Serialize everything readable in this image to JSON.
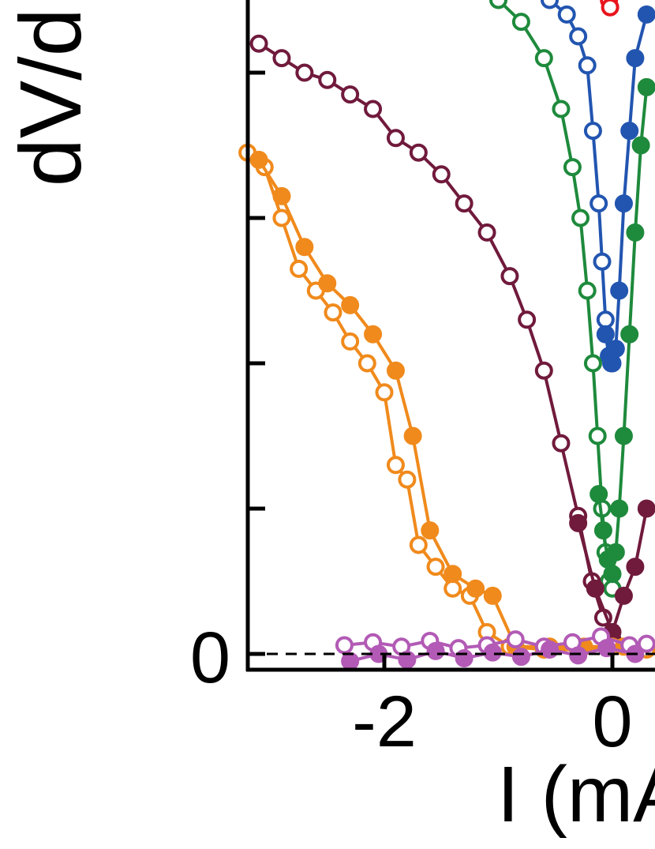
{
  "chart_data": {
    "type": "scatter",
    "title": "",
    "xlabel": "I (mA)",
    "ylabel": "dV/dI",
    "xlim": [
      -3.3,
      0.3
    ],
    "ylim": [
      -0.1,
      4.5
    ],
    "x_tick_labels": [
      "-2",
      "0"
    ],
    "x_ticks": [
      -2,
      0
    ],
    "y_tick_labels": [
      "0"
    ],
    "y_ticks": [
      0,
      1,
      2,
      3,
      4
    ],
    "reference_line": {
      "y": 0,
      "style": "dashed"
    },
    "series": [
      {
        "color": "#e8141c",
        "marker": "open-circle",
        "x": [
          -0.03,
          -0.02
        ],
        "y": [
          4.5,
          4.45
        ]
      },
      {
        "color": "#2255b0",
        "marker": "open-circle",
        "x": [
          -0.55,
          -0.4,
          -0.3,
          -0.22,
          -0.17,
          -0.12,
          -0.09,
          -0.06,
          -0.03,
          -0.01
        ],
        "y": [
          4.5,
          4.4,
          4.25,
          4.05,
          3.6,
          3.1,
          2.7,
          2.3,
          2.05,
          2.0
        ]
      },
      {
        "color": "#2255b0",
        "marker": "filled-circle",
        "x": [
          -0.06,
          -0.03,
          0.0,
          0.03,
          0.06,
          0.1,
          0.15,
          0.2,
          0.3
        ],
        "y": [
          2.2,
          2.05,
          2.0,
          2.1,
          2.5,
          3.1,
          3.6,
          4.1,
          4.4
        ]
      },
      {
        "color": "#1e8a3c",
        "marker": "open-circle",
        "x": [
          -1.0,
          -0.8,
          -0.6,
          -0.45,
          -0.35,
          -0.28,
          -0.22,
          -0.17,
          -0.13,
          -0.09,
          -0.06,
          -0.03,
          0.0
        ],
        "y": [
          4.5,
          4.35,
          4.1,
          3.75,
          3.35,
          3.0,
          2.5,
          2.0,
          1.5,
          1.0,
          0.7,
          0.5,
          0.45
        ]
      },
      {
        "color": "#1e8a3c",
        "marker": "filled-circle",
        "x": [
          -0.12,
          -0.08,
          -0.04,
          0.0,
          0.03,
          0.06,
          0.1,
          0.15,
          0.2,
          0.25,
          0.3
        ],
        "y": [
          1.1,
          0.85,
          0.65,
          0.55,
          0.7,
          1.0,
          1.5,
          2.2,
          2.9,
          3.5,
          3.9
        ]
      },
      {
        "color": "#701a3c",
        "marker": "open-circle",
        "x": [
          -3.1,
          -2.9,
          -2.7,
          -2.5,
          -2.3,
          -2.1,
          -1.9,
          -1.7,
          -1.5,
          -1.3,
          -1.1,
          -0.9,
          -0.75,
          -0.6,
          -0.45,
          -0.3,
          -0.18,
          -0.08,
          0.0
        ],
        "y": [
          4.2,
          4.1,
          4.0,
          3.95,
          3.85,
          3.75,
          3.55,
          3.45,
          3.3,
          3.1,
          2.9,
          2.6,
          2.3,
          1.95,
          1.45,
          0.95,
          0.5,
          0.25,
          0.1
        ]
      },
      {
        "color": "#701a3c",
        "marker": "filled-circle",
        "x": [
          -0.3,
          -0.15,
          0.0,
          0.1,
          0.2,
          0.3
        ],
        "y": [
          0.9,
          0.45,
          0.15,
          0.4,
          0.6,
          1.0
        ]
      },
      {
        "color": "#f08a1c",
        "marker": "open-circle",
        "x": [
          -3.2,
          -3.05,
          -2.9,
          -2.75,
          -2.6,
          -2.45,
          -2.3,
          -2.15,
          -2.0,
          -1.9,
          -1.8,
          -1.7,
          -1.55,
          -1.4,
          -1.25,
          -1.1,
          -0.9,
          -0.6,
          -0.3,
          0.0,
          0.3
        ],
        "y": [
          3.45,
          3.35,
          3.0,
          2.65,
          2.5,
          2.35,
          2.15,
          2.0,
          1.8,
          1.3,
          1.2,
          0.75,
          0.6,
          0.45,
          0.4,
          0.15,
          0.05,
          0.03,
          0.03,
          0.05,
          0.03
        ]
      },
      {
        "color": "#f08a1c",
        "marker": "filled-circle",
        "x": [
          -3.1,
          -2.9,
          -2.7,
          -2.5,
          -2.3,
          -2.1,
          -1.9,
          -1.75,
          -1.6,
          -1.4,
          -1.2,
          -1.05,
          -0.85,
          -0.55,
          -0.25,
          0.1
        ],
        "y": [
          3.4,
          3.15,
          2.8,
          2.55,
          2.4,
          2.2,
          1.95,
          1.5,
          0.85,
          0.55,
          0.45,
          0.4,
          0.05,
          0.05,
          0.05,
          0.05
        ]
      },
      {
        "color": "#b25ab5",
        "marker": "open-circle",
        "x": [
          -2.35,
          -2.1,
          -1.85,
          -1.6,
          -1.35,
          -1.1,
          -0.85,
          -0.6,
          -0.35,
          -0.1,
          0.15,
          0.3
        ],
        "y": [
          0.06,
          0.08,
          0.05,
          0.09,
          0.04,
          0.06,
          0.1,
          0.05,
          0.08,
          0.12,
          0.06,
          0.07
        ]
      },
      {
        "color": "#b25ab5",
        "marker": "filled-circle",
        "x": [
          -2.3,
          -2.05,
          -1.8,
          -1.55,
          -1.3,
          -1.05,
          -0.8,
          -0.55,
          -0.3,
          -0.05,
          0.2
        ],
        "y": [
          -0.05,
          0.0,
          -0.04,
          0.02,
          -0.03,
          0.01,
          -0.02,
          0.03,
          -0.01,
          0.04,
          0.0
        ]
      }
    ]
  }
}
